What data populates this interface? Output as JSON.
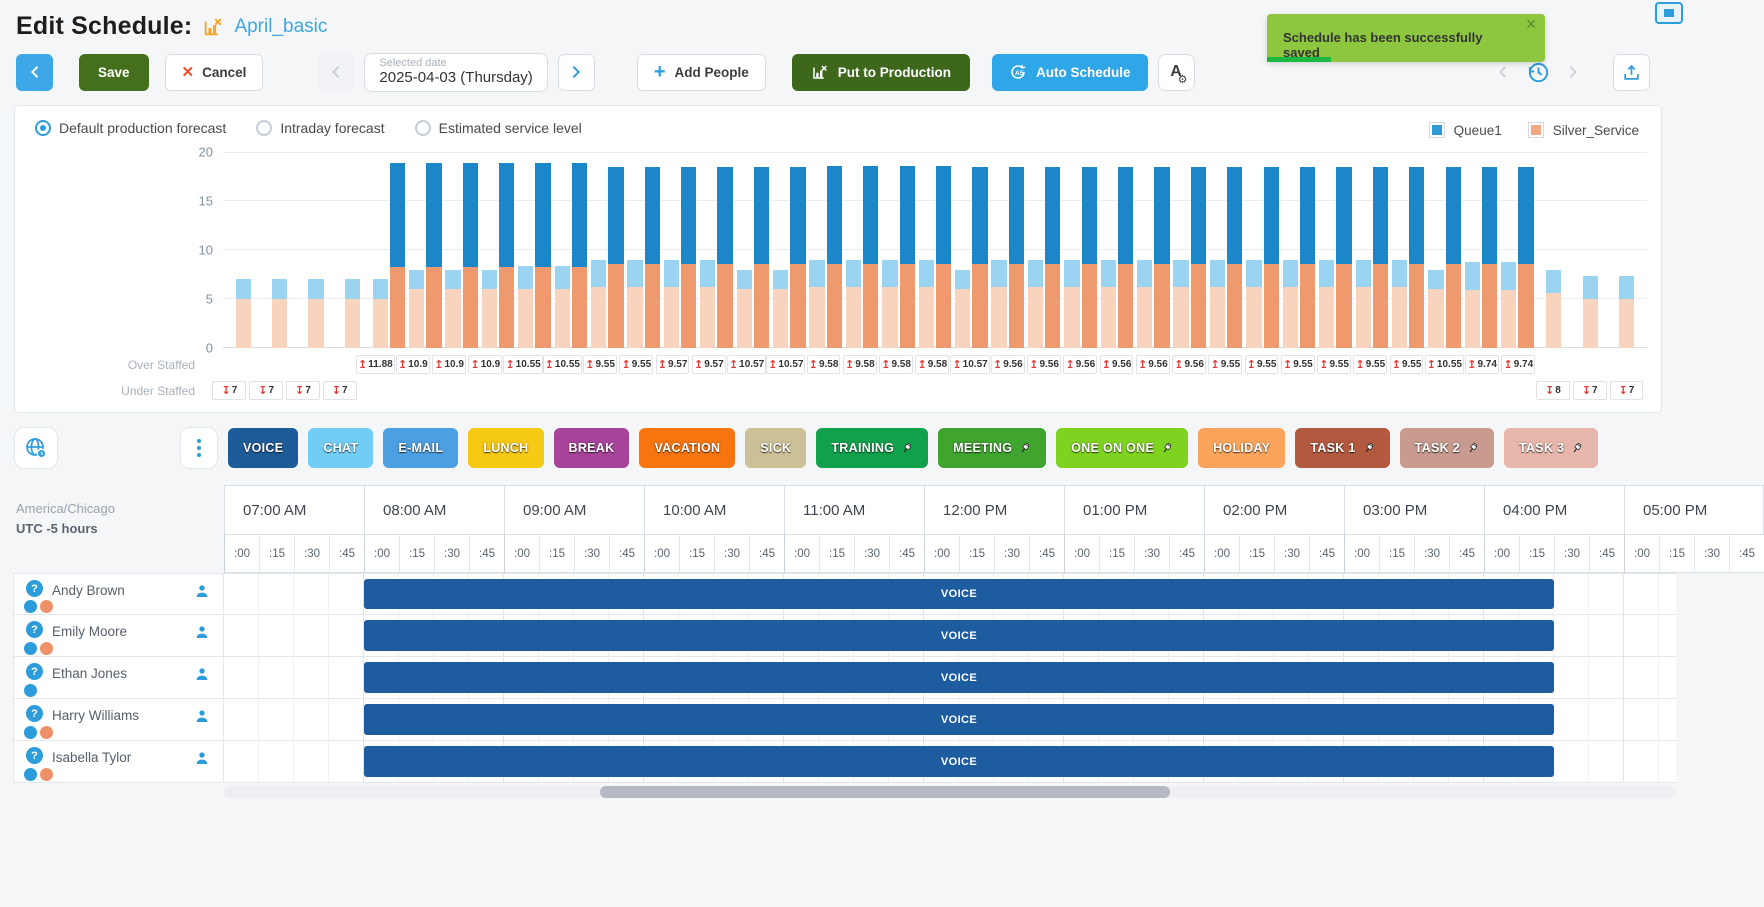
{
  "header": {
    "title": "Edit Schedule:",
    "schedule_name": "April_basic"
  },
  "toast": {
    "message": "Schedule has been successfully saved"
  },
  "toolbar": {
    "save": "Save",
    "cancel": "Cancel",
    "selected_date_label": "Selected date",
    "selected_date_value": "2025-04-03 (Thursday)",
    "add_people": "Add People",
    "put_to_production": "Put to Production",
    "auto_schedule": "Auto Schedule"
  },
  "forecast_options": [
    {
      "label": "Default production forecast",
      "selected": true
    },
    {
      "label": "Intraday forecast",
      "selected": false
    },
    {
      "label": "Estimated service level",
      "selected": false
    }
  ],
  "legend": [
    {
      "label": "Queue1",
      "color": "#2E9BD6"
    },
    {
      "label": "Silver_Service",
      "color": "#F2A983"
    }
  ],
  "chart_data": {
    "type": "bar",
    "title": "",
    "xlabel": "",
    "ylabel": "",
    "ylim": [
      0,
      20
    ],
    "yticks": [
      0,
      5,
      10,
      15,
      20
    ],
    "grid": true,
    "legend_position": "top-right",
    "series_legend": [
      "Queue1",
      "Silver_Service"
    ],
    "over_staffed_label": "Over Staffed",
    "under_staffed_label": "Under Staffed",
    "colors": {
      "forecast_queue1": "#9AD4F1",
      "forecast_silver": "#F8D3BD",
      "scheduled_queue1": "#1B87C9",
      "scheduled_silver": "#EF9A6E",
      "arrow": "#E53935"
    },
    "slot_format": [
      "time",
      "forecast_silver",
      "forecast_queue1",
      "scheduled_silver",
      "scheduled_queue1",
      "over_staffed",
      "under_staffed"
    ],
    "slots": [
      [
        "07:00",
        5,
        2,
        0,
        0,
        null,
        7
      ],
      [
        "07:15",
        5,
        2,
        0,
        0,
        null,
        7
      ],
      [
        "07:30",
        5,
        2,
        0,
        0,
        null,
        7
      ],
      [
        "07:45",
        5,
        2,
        0,
        0,
        null,
        7
      ],
      [
        "08:00",
        5,
        2,
        8.3,
        10.58,
        11.88,
        null
      ],
      [
        "08:15",
        6,
        2,
        8.3,
        10.6,
        10.9,
        null
      ],
      [
        "08:30",
        6,
        2,
        8.3,
        10.6,
        10.9,
        null
      ],
      [
        "08:45",
        6,
        2,
        8.3,
        10.6,
        10.9,
        null
      ],
      [
        "09:00",
        6,
        2.35,
        8.3,
        10.6,
        10.55,
        null
      ],
      [
        "09:15",
        6,
        2.35,
        8.3,
        10.6,
        10.55,
        null
      ],
      [
        "09:30",
        6.2,
        2.75,
        8.6,
        9.9,
        9.55,
        null
      ],
      [
        "09:45",
        6.2,
        2.75,
        8.6,
        9.9,
        9.55,
        null
      ],
      [
        "10:00",
        6.2,
        2.75,
        8.6,
        9.92,
        9.57,
        null
      ],
      [
        "10:15",
        6.2,
        2.75,
        8.6,
        9.92,
        9.57,
        null
      ],
      [
        "10:30",
        6,
        1.95,
        8.6,
        9.92,
        10.57,
        null
      ],
      [
        "10:45",
        6,
        1.95,
        8.6,
        9.92,
        10.57,
        null
      ],
      [
        "11:00",
        6.2,
        2.75,
        8.6,
        9.93,
        9.58,
        null
      ],
      [
        "11:15",
        6.2,
        2.75,
        8.6,
        9.93,
        9.58,
        null
      ],
      [
        "11:30",
        6.2,
        2.75,
        8.6,
        9.93,
        9.58,
        null
      ],
      [
        "11:45",
        6.2,
        2.75,
        8.6,
        9.93,
        9.58,
        null
      ],
      [
        "12:00",
        6,
        1.95,
        8.6,
        9.92,
        10.57,
        null
      ],
      [
        "12:15",
        6.2,
        2.75,
        8.6,
        9.91,
        9.56,
        null
      ],
      [
        "12:30",
        6.2,
        2.75,
        8.6,
        9.91,
        9.56,
        null
      ],
      [
        "12:45",
        6.2,
        2.75,
        8.6,
        9.91,
        9.56,
        null
      ],
      [
        "13:00",
        6.2,
        2.75,
        8.6,
        9.91,
        9.56,
        null
      ],
      [
        "13:15",
        6.2,
        2.75,
        8.6,
        9.91,
        9.56,
        null
      ],
      [
        "13:30",
        6.2,
        2.75,
        8.6,
        9.91,
        9.56,
        null
      ],
      [
        "13:45",
        6.2,
        2.75,
        8.6,
        9.9,
        9.55,
        null
      ],
      [
        "14:00",
        6.2,
        2.75,
        8.6,
        9.9,
        9.55,
        null
      ],
      [
        "14:15",
        6.2,
        2.75,
        8.6,
        9.9,
        9.55,
        null
      ],
      [
        "14:30",
        6.2,
        2.75,
        8.6,
        9.9,
        9.55,
        null
      ],
      [
        "14:45",
        6.2,
        2.75,
        8.6,
        9.9,
        9.55,
        null
      ],
      [
        "15:00",
        6.2,
        2.75,
        8.6,
        9.9,
        9.55,
        null
      ],
      [
        "15:15",
        6,
        1.95,
        8.6,
        9.9,
        10.55,
        null
      ],
      [
        "15:30",
        5.9,
        2.85,
        8.6,
        9.89,
        9.74,
        null
      ],
      [
        "15:45",
        5.9,
        2.85,
        8.6,
        9.89,
        9.74,
        null
      ],
      [
        "16:00",
        5.6,
        2.4,
        0,
        0,
        null,
        8
      ],
      [
        "16:15",
        5,
        2.3,
        0,
        0,
        null,
        7
      ],
      [
        "16:30",
        5,
        2.3,
        0,
        0,
        null,
        7
      ]
    ]
  },
  "palette": [
    {
      "label": "VOICE",
      "color": "#1E5C99",
      "pinned": false
    },
    {
      "label": "CHAT",
      "color": "#72CDF4",
      "pinned": false
    },
    {
      "label": "E-MAIL",
      "color": "#4C9FE0",
      "pinned": false
    },
    {
      "label": "LUNCH",
      "color": "#F6C915",
      "pinned": false
    },
    {
      "label": "BREAK",
      "color": "#A8439A",
      "pinned": false
    },
    {
      "label": "VACATION",
      "color": "#F7750F",
      "pinned": false
    },
    {
      "label": "SICK",
      "color": "#CBC096",
      "pinned": false
    },
    {
      "label": "TRAINING",
      "color": "#11A04C",
      "pinned": true
    },
    {
      "label": "MEETING",
      "color": "#3FA52E",
      "pinned": true
    },
    {
      "label": "ONE ON ONE",
      "color": "#7ED321",
      "pinned": true
    },
    {
      "label": "HOLIDAY",
      "color": "#FBA55C",
      "pinned": false
    },
    {
      "label": "TASK 1",
      "color": "#B2593F",
      "pinned": true
    },
    {
      "label": "TASK 2",
      "color": "#C99A8F",
      "pinned": true
    },
    {
      "label": "TASK 3",
      "color": "#E7B7AB",
      "pinned": true
    }
  ],
  "timezone": {
    "region": "America/Chicago",
    "offset": "UTC -5 hours"
  },
  "timeline": {
    "hours": [
      "07:00 AM",
      "08:00 AM",
      "09:00 AM",
      "10:00 AM",
      "11:00 AM",
      "12:00 PM",
      "01:00 PM",
      "02:00 PM",
      "03:00 PM",
      "04:00 PM",
      "05:00 PM"
    ],
    "subs": [
      ":00",
      ":15",
      ":30",
      ":45"
    ]
  },
  "employees": [
    {
      "name": "Andy Brown",
      "dots": [
        "#2D9CDB",
        "#EF9168"
      ]
    },
    {
      "name": "Emily Moore",
      "dots": [
        "#2D9CDB",
        "#EF9168"
      ]
    },
    {
      "name": "Ethan Jones",
      "dots": [
        "#2D9CDB"
      ]
    },
    {
      "name": "Harry Williams",
      "dots": [
        "#2D9CDB",
        "#EF9168"
      ]
    },
    {
      "name": "Isabella Tylor",
      "dots": [
        "#2D9CDB",
        "#EF9168"
      ]
    }
  ],
  "shift": {
    "activity": "VOICE",
    "color": "#1D5C9E",
    "start": "08:00 AM",
    "end": "04:30 PM"
  }
}
